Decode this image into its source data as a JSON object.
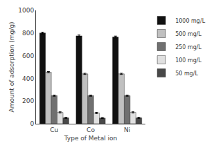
{
  "chart_data": {
    "type": "bar",
    "categories": [
      "Cu",
      "Co",
      "Ni"
    ],
    "series": [
      {
        "name": "1000 mg/L",
        "values": [
          800,
          775,
          765
        ],
        "errors": [
          8,
          8,
          8
        ],
        "color": "#111111"
      },
      {
        "name": "500 mg/L",
        "values": [
          455,
          440,
          440
        ],
        "errors": [
          5,
          5,
          5
        ],
        "color": "#c0c0c0"
      },
      {
        "name": "250 mg/L",
        "values": [
          248,
          248,
          248
        ],
        "errors": [
          5,
          5,
          5
        ],
        "color": "#707070"
      },
      {
        "name": "100 mg/L",
        "values": [
          100,
          95,
          100
        ],
        "errors": [
          5,
          5,
          5
        ],
        "color": "#e0e0e0"
      },
      {
        "name": "50 mg/L",
        "values": [
          52,
          50,
          52
        ],
        "errors": [
          5,
          5,
          5
        ],
        "color": "#484848"
      }
    ],
    "xlabel": "Type of Metal ion",
    "ylabel": "Amount of adsorption (mg/g)",
    "ylim": [
      0,
      1000
    ],
    "yticks": [
      0,
      200,
      400,
      600,
      800,
      1000
    ],
    "grid": false,
    "legend": "right"
  }
}
